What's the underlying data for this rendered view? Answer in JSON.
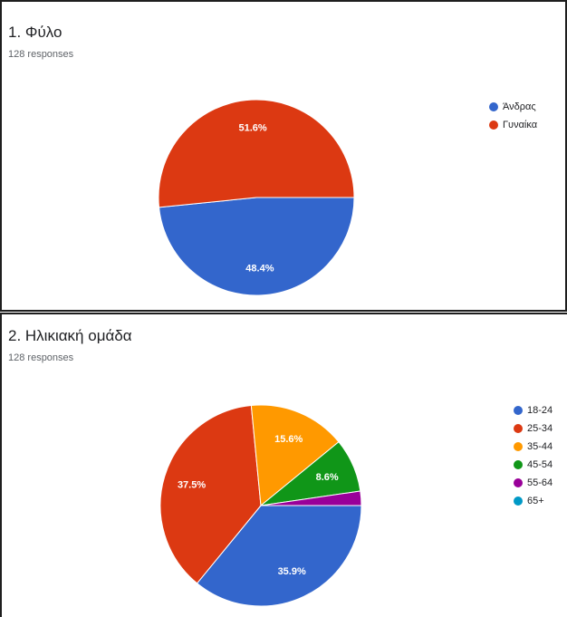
{
  "chart_data": [
    {
      "type": "pie",
      "title": "1. Φύλο",
      "subtitle": "128 responses",
      "legend_position": "right",
      "categories": [
        "Άνδρας",
        "Γυναίκα"
      ],
      "values": [
        48.4,
        51.6
      ],
      "labels": [
        "48.4%",
        "51.6%"
      ],
      "colors": [
        "#3366cc",
        "#dc3912"
      ]
    },
    {
      "type": "pie",
      "title": "2. Ηλικιακή ομάδα",
      "subtitle": "128 responses",
      "legend_position": "right",
      "categories": [
        "18-24",
        "25-34",
        "35-44",
        "45-54",
        "55-64",
        "65+"
      ],
      "values": [
        35.9,
        37.5,
        15.6,
        8.6,
        2.3,
        0
      ],
      "labels": [
        "35.9%",
        "37.5%",
        "15.6%",
        "8.6%",
        "",
        ""
      ],
      "colors": [
        "#3366cc",
        "#dc3912",
        "#ff9900",
        "#109618",
        "#990099",
        "#0099c6"
      ]
    }
  ]
}
